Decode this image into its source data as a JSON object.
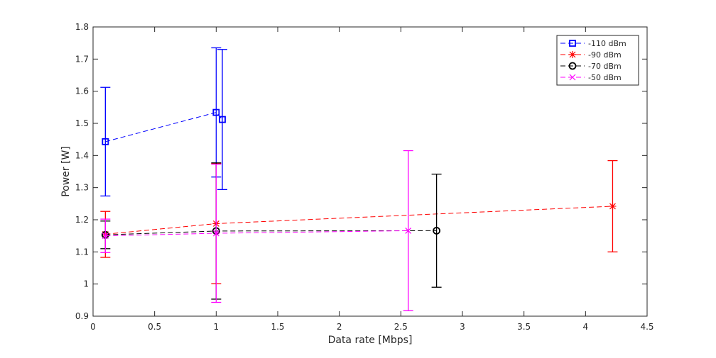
{
  "chart_data": {
    "type": "line",
    "xlabel": "Data rate [Mbps]",
    "ylabel": "Power [W]",
    "xlim": [
      0,
      4.5
    ],
    "ylim": [
      0.9,
      1.8
    ],
    "xticks": [
      "0",
      "0.5",
      "1",
      "1.5",
      "2",
      "2.5",
      "3",
      "3.5",
      "4",
      "4.5"
    ],
    "yticks": [
      "0.9",
      "1",
      "1.1",
      "1.2",
      "1.3",
      "1.4",
      "1.5",
      "1.6",
      "1.7",
      "1.8"
    ],
    "grid": false,
    "legend_position": "top-right",
    "series": [
      {
        "name": "-110 dBm",
        "color": "#0000ff",
        "marker": "square",
        "points": [
          {
            "x": 0.1,
            "y": 1.443,
            "lo": 1.274,
            "hi": 1.612
          },
          {
            "x": 1.0,
            "y": 1.534,
            "lo": 1.333,
            "hi": 1.735
          },
          {
            "x": 1.05,
            "y": 1.512,
            "lo": 1.294,
            "hi": 1.73
          }
        ]
      },
      {
        "name": "-90 dBm",
        "color": "#ff0000",
        "marker": "star",
        "points": [
          {
            "x": 0.1,
            "y": 1.155,
            "lo": 1.083,
            "hi": 1.226
          },
          {
            "x": 1.0,
            "y": 1.188,
            "lo": 1.001,
            "hi": 1.375
          },
          {
            "x": 4.22,
            "y": 1.242,
            "lo": 1.1,
            "hi": 1.384
          }
        ]
      },
      {
        "name": "-70 dBm",
        "color": "#000000",
        "marker": "circle",
        "points": [
          {
            "x": 0.1,
            "y": 1.153,
            "lo": 1.11,
            "hi": 1.196
          },
          {
            "x": 1.0,
            "y": 1.165,
            "lo": 0.953,
            "hi": 1.377
          },
          {
            "x": 2.79,
            "y": 1.166,
            "lo": 0.99,
            "hi": 1.342
          }
        ]
      },
      {
        "name": "-50 dBm",
        "color": "#ff00ff",
        "marker": "x",
        "points": [
          {
            "x": 0.1,
            "y": 1.15,
            "lo": 1.098,
            "hi": 1.202
          },
          {
            "x": 1.0,
            "y": 1.158,
            "lo": 0.943,
            "hi": 1.373
          },
          {
            "x": 2.56,
            "y": 1.166,
            "lo": 0.917,
            "hi": 1.415
          }
        ]
      }
    ]
  }
}
